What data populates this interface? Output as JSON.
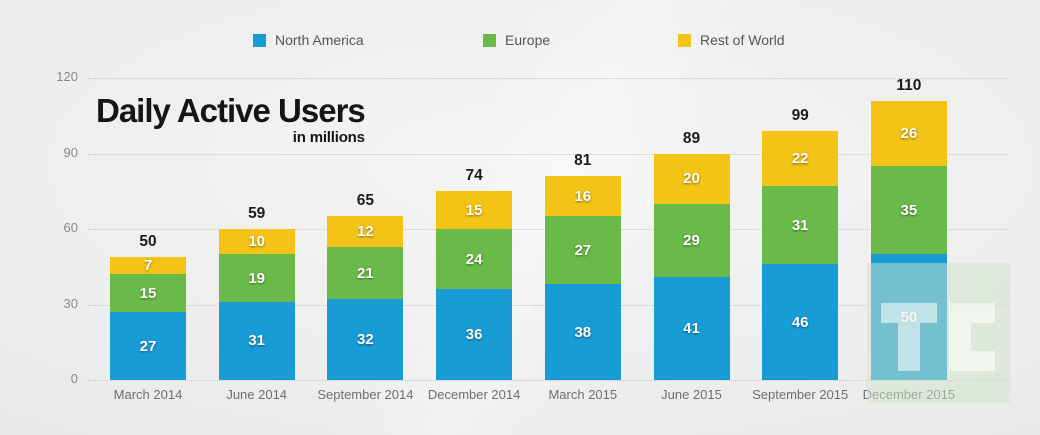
{
  "title_block": {
    "title": "Daily Active Users",
    "subtitle": "in millions"
  },
  "legend": {
    "items": [
      {
        "label": "North America",
        "color": "#189CD6"
      },
      {
        "label": "Europe",
        "color": "#6ABA4A"
      },
      {
        "label": "Rest of World",
        "color": "#F3C316"
      }
    ]
  },
  "watermark": {
    "name": "techcrunch-logo",
    "letters": "TC"
  },
  "colors": {
    "north_america": "#189CD6",
    "europe": "#6ABA4A",
    "rest_of_world": "#F3C316",
    "grid": "#c6c6c6",
    "axis_text": "#8a8a8a",
    "category_text": "#6f6f6f",
    "total_text": "#1c1c1c",
    "background": "#ededed"
  },
  "chart_data": {
    "type": "bar",
    "stacked": true,
    "title": "Daily Active Users",
    "subtitle": "in millions",
    "categories": [
      "March 2014",
      "June 2014",
      "September 2014",
      "December 2014",
      "March 2015",
      "June 2015",
      "September 2015",
      "December 2015"
    ],
    "series": [
      {
        "name": "North America",
        "color": "#189CD6",
        "values": [
          27,
          31,
          32,
          36,
          38,
          41,
          46,
          50
        ]
      },
      {
        "name": "Europe",
        "color": "#6ABA4A",
        "values": [
          15,
          19,
          21,
          24,
          27,
          29,
          31,
          35
        ]
      },
      {
        "name": "Rest of World",
        "color": "#F3C316",
        "values": [
          7,
          10,
          12,
          15,
          16,
          20,
          22,
          26
        ]
      }
    ],
    "totals": [
      50,
      59,
      65,
      74,
      81,
      89,
      99,
      110
    ],
    "yticks": [
      0,
      30,
      60,
      90,
      120
    ],
    "ylim": [
      0,
      120
    ],
    "xlabel": "",
    "ylabel": "",
    "grid": "horizontal-dotted",
    "legend_position": "top"
  }
}
